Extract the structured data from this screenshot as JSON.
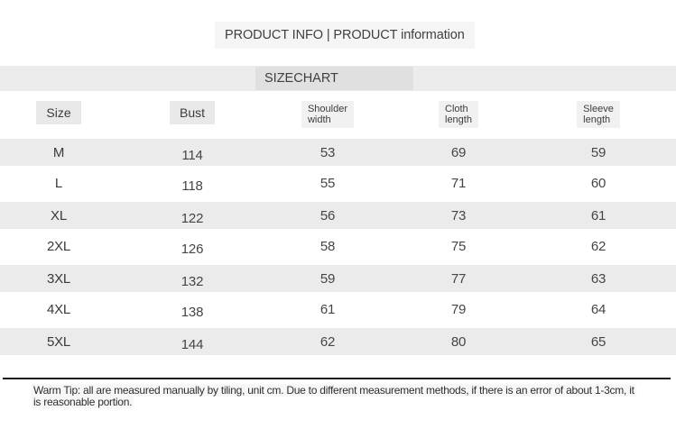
{
  "header": {
    "title": "PRODUCT INFO | PRODUCT information"
  },
  "sizechart": {
    "title": "SIZECHART"
  },
  "table": {
    "headers": [
      {
        "label": "Size"
      },
      {
        "label": "Bust"
      },
      {
        "line1": "Shoulder",
        "line2": "width"
      },
      {
        "line1": "Cloth",
        "line2": "length"
      },
      {
        "line1": "Sleeve",
        "line2": "length"
      }
    ],
    "unit": "cm",
    "rows": [
      {
        "size": "M",
        "bust": "114",
        "shoulder": "53",
        "cloth": "69",
        "sleeve": "59"
      },
      {
        "size": "L",
        "bust": "118",
        "shoulder": "55",
        "cloth": "71",
        "sleeve": "60"
      },
      {
        "size": "XL",
        "bust": "122",
        "shoulder": "56",
        "cloth": "73",
        "sleeve": "61"
      },
      {
        "size": "2XL",
        "bust": "126",
        "shoulder": "58",
        "cloth": "75",
        "sleeve": "62"
      },
      {
        "size": "3XL",
        "bust": "132",
        "shoulder": "59",
        "cloth": "77",
        "sleeve": "63"
      },
      {
        "size": "4XL",
        "bust": "138",
        "shoulder": "61",
        "cloth": "79",
        "sleeve": "64"
      },
      {
        "size": "5XL",
        "bust": "144",
        "shoulder": "62",
        "cloth": "80",
        "sleeve": "65"
      }
    ]
  },
  "warm_tip": {
    "line1": "Warm Tip: all are measured manually by tiling, unit cm. Due to different measurement methods, if there is an error of about 1-3cm, it",
    "line2": "is reasonable portion."
  },
  "colors": {
    "stripe": "#ebebeb",
    "band": "#ececec",
    "divider": "#1a1a1a"
  }
}
